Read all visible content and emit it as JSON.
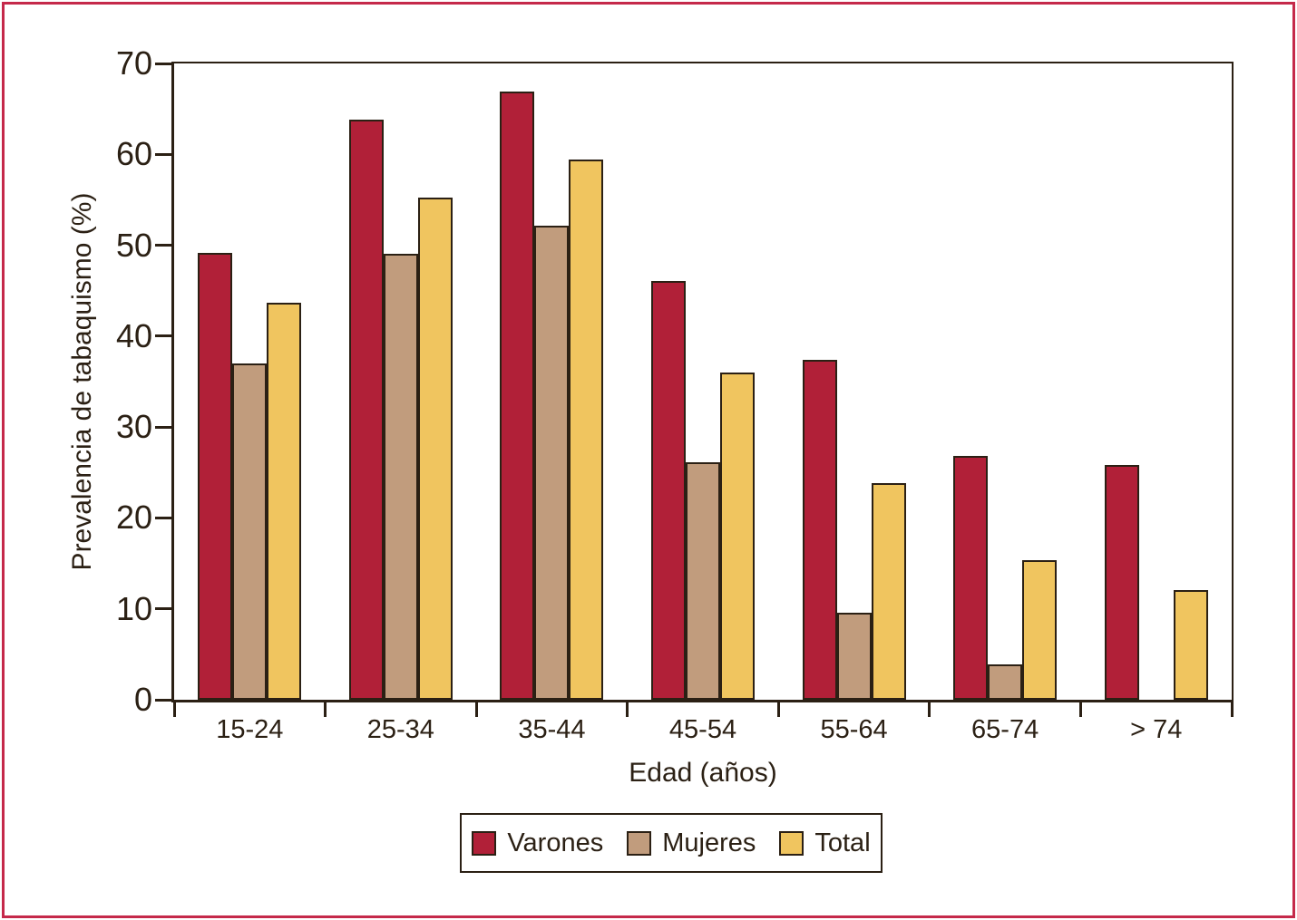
{
  "figure": {
    "border_color": "#C5294A",
    "background_color": "#FFFFFF",
    "text_color": "#2B2014",
    "axis_color": "#2B2014"
  },
  "chart_data": {
    "type": "bar",
    "title": "",
    "categories": [
      "15-24",
      "25-34",
      "35-44",
      "45-54",
      "55-64",
      "65-74",
      "> 74"
    ],
    "series": [
      {
        "name": "Varones",
        "color": "#B12038",
        "values": [
          49.2,
          63.8,
          66.9,
          46.1,
          37.4,
          26.8,
          25.8
        ]
      },
      {
        "name": "Mujeres",
        "color": "#C19C7D",
        "values": [
          37.0,
          49.1,
          52.2,
          26.1,
          9.6,
          3.9,
          null
        ]
      },
      {
        "name": "Total",
        "color": "#F0C55F",
        "values": [
          43.7,
          55.2,
          59.4,
          36.0,
          23.8,
          15.4,
          12.1
        ]
      }
    ],
    "xlabel": "Edad (años)",
    "ylabel": "Prevalencia de tabaquismo (%)",
    "ylim": [
      0,
      70
    ],
    "yticks": [
      0,
      10,
      20,
      30,
      40,
      50,
      60,
      70
    ],
    "grid": false,
    "legend_position": "bottom",
    "bar_outline_color": "#2B2014"
  }
}
